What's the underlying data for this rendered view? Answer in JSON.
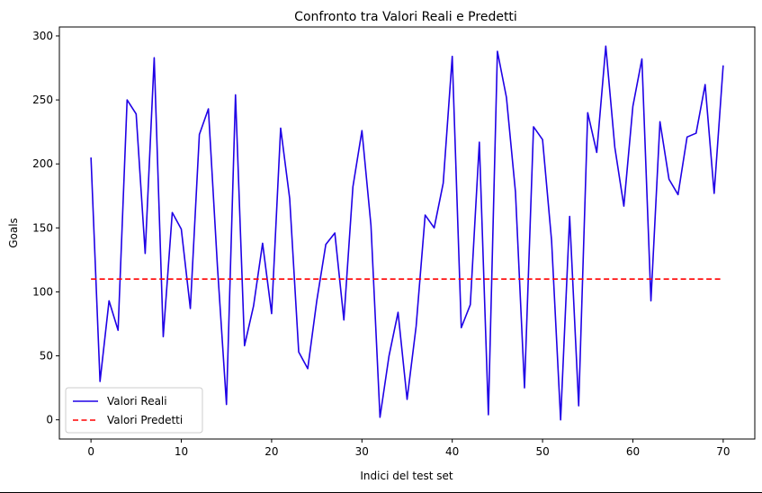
{
  "chart_data": {
    "type": "line",
    "title": "Confronto tra Valori Reali e Predetti",
    "xlabel": "Indici del test set",
    "ylabel": "Goals",
    "xlim": [
      -3.5,
      73.5
    ],
    "ylim": [
      -15,
      307
    ],
    "xticks": [
      0,
      10,
      20,
      30,
      40,
      50,
      60,
      70
    ],
    "yticks": [
      0,
      50,
      100,
      150,
      200,
      250,
      300
    ],
    "grid": false,
    "legend_position": "lower-left",
    "series": [
      {
        "name": "Valori Reali",
        "color": "#1f00e6",
        "style": "solid",
        "x": [
          0,
          1,
          2,
          3,
          4,
          5,
          6,
          7,
          8,
          9,
          10,
          11,
          12,
          13,
          14,
          15,
          16,
          17,
          18,
          19,
          20,
          21,
          22,
          23,
          24,
          25,
          26,
          27,
          28,
          29,
          30,
          31,
          32,
          33,
          34,
          35,
          36,
          37,
          38,
          39,
          40,
          41,
          42,
          43,
          44,
          45,
          46,
          47,
          48,
          49,
          50,
          51,
          52,
          53,
          54,
          55,
          56,
          57,
          58,
          59,
          60,
          61,
          62,
          63,
          64,
          65,
          66,
          67,
          68,
          69,
          70
        ],
        "values": [
          205,
          30,
          93,
          70,
          250,
          239,
          130,
          283,
          65,
          162,
          149,
          87,
          223,
          243,
          120,
          12,
          254,
          58,
          89,
          138,
          83,
          228,
          173,
          53,
          40,
          93,
          137,
          146,
          78,
          182,
          226,
          152,
          2,
          50,
          84,
          16,
          73,
          160,
          150,
          185,
          284,
          72,
          90,
          217,
          4,
          288,
          252,
          178,
          25,
          229,
          219,
          140,
          0,
          159,
          11,
          240,
          209,
          292,
          213,
          167,
          245,
          282,
          93,
          233,
          188,
          176,
          221,
          224,
          262,
          177,
          277
        ]
      },
      {
        "name": "Valori Predetti",
        "color": "#ff0000",
        "style": "dashed",
        "x": [
          0,
          70
        ],
        "values": [
          110,
          110
        ]
      }
    ]
  }
}
